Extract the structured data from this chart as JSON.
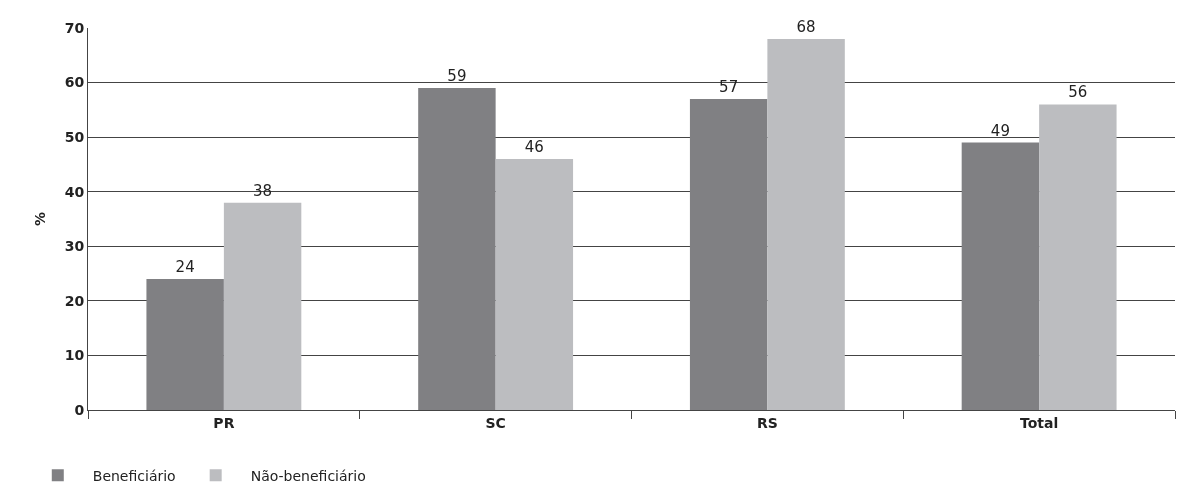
{
  "chart_data": {
    "type": "bar",
    "ylabel": "%",
    "categories": [
      "PR",
      "SC",
      "RS",
      "Total"
    ],
    "series": [
      {
        "name": "Beneficiário",
        "color": "#808083",
        "values": [
          24,
          59,
          57,
          49
        ]
      },
      {
        "name": "Não-beneficiário",
        "color": "#bcbdc0",
        "values": [
          38,
          46,
          68,
          56
        ]
      }
    ],
    "ylim": [
      0,
      70
    ],
    "yticks": [
      0,
      10,
      20,
      30,
      40,
      50,
      60,
      70
    ],
    "grid": "y",
    "legend": "bottom left",
    "data_labels": true
  }
}
